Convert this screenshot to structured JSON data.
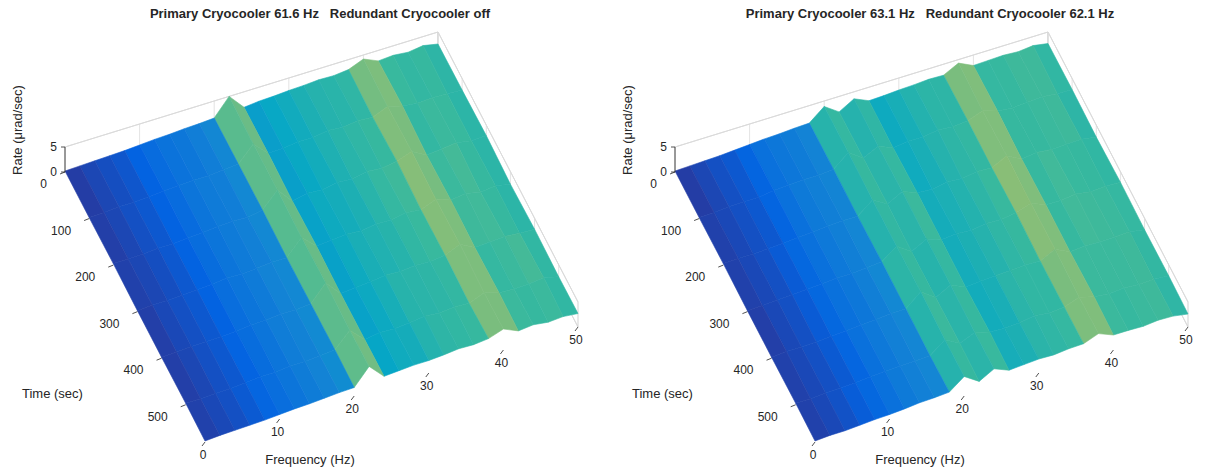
{
  "chart_data": [
    {
      "type": "surface",
      "title": "Primary Cryocooler 61.6 Hz   Redundant Cryocooler off",
      "xlabel": "Frequency (Hz)",
      "ylabel": "Time (sec)",
      "zlabel": "Rate (μrad/sec)",
      "x": [
        0,
        2,
        4,
        6,
        8,
        10,
        12,
        14,
        16,
        18,
        20,
        22,
        24,
        26,
        28,
        30,
        32,
        34,
        36,
        38,
        40,
        42,
        44,
        46,
        48,
        50
      ],
      "y": [
        0,
        100,
        200,
        300,
        400,
        500,
        580
      ],
      "values": [
        [
          0.2,
          0.3,
          0.4,
          0.5,
          0.6,
          0.8,
          1.0,
          1.1,
          1.3,
          1.4,
          1.6,
          5.0,
          1.9,
          2.2,
          2.3,
          2.5,
          2.6,
          2.8,
          2.7,
          3.0,
          4.2,
          2.9,
          3.1,
          2.8,
          3.2,
          2.6
        ],
        [
          0.2,
          0.3,
          0.5,
          0.5,
          0.7,
          0.9,
          1.1,
          1.2,
          1.2,
          1.5,
          1.7,
          4.8,
          2.0,
          2.1,
          2.5,
          2.4,
          2.9,
          2.6,
          3.0,
          2.8,
          4.0,
          3.2,
          2.8,
          3.0,
          2.9,
          2.7
        ],
        [
          0.3,
          0.3,
          0.4,
          0.6,
          0.6,
          0.8,
          1.0,
          1.3,
          1.4,
          1.3,
          1.8,
          4.9,
          1.8,
          2.4,
          2.2,
          2.7,
          2.5,
          3.1,
          2.8,
          3.3,
          4.3,
          2.7,
          3.0,
          3.3,
          2.8,
          2.9
        ],
        [
          0.2,
          0.4,
          0.4,
          0.5,
          0.7,
          0.9,
          1.2,
          1.1,
          1.3,
          1.6,
          1.6,
          4.7,
          2.1,
          2.3,
          2.6,
          2.4,
          2.8,
          2.7,
          3.2,
          2.9,
          4.1,
          3.0,
          3.4,
          2.7,
          3.1,
          2.5
        ],
        [
          0.2,
          0.3,
          0.5,
          0.6,
          0.6,
          0.8,
          1.1,
          1.2,
          1.5,
          1.4,
          1.7,
          4.9,
          1.9,
          2.2,
          2.4,
          2.8,
          2.6,
          2.9,
          2.8,
          3.1,
          4.4,
          2.8,
          3.0,
          3.2,
          2.9,
          2.8
        ],
        [
          0.3,
          0.3,
          0.4,
          0.5,
          0.7,
          1.0,
          1.0,
          1.3,
          1.3,
          1.5,
          1.8,
          4.8,
          2.0,
          2.5,
          2.3,
          2.6,
          3.0,
          2.7,
          3.0,
          2.8,
          4.0,
          3.1,
          2.9,
          3.0,
          3.3,
          2.6
        ],
        [
          0.2,
          0.4,
          0.5,
          0.6,
          0.7,
          0.9,
          1.1,
          1.2,
          1.4,
          1.6,
          1.7,
          5.0,
          2.1,
          2.3,
          2.5,
          2.5,
          2.7,
          3.0,
          2.9,
          3.2,
          4.2,
          2.9,
          3.2,
          2.8,
          3.0,
          2.7
        ]
      ],
      "xlim": [
        0,
        50
      ],
      "xticks": [
        0,
        10,
        20,
        30,
        40,
        50
      ],
      "ylim": [
        0,
        580
      ],
      "yticks": [
        0,
        100,
        200,
        300,
        400,
        500
      ],
      "zlim": [
        0,
        5
      ],
      "zticks": [
        0,
        5
      ],
      "grid": true
    },
    {
      "type": "surface",
      "title": "Primary Cryocooler 63.1 Hz   Redundant Cryocooler 62.1 Hz",
      "xlabel": "Frequency (Hz)",
      "ylabel": "Time (sec)",
      "zlabel": "Rate (μrad/sec)",
      "x": [
        0,
        2,
        4,
        6,
        8,
        10,
        12,
        14,
        16,
        18,
        20,
        22,
        24,
        26,
        28,
        30,
        32,
        34,
        36,
        38,
        40,
        42,
        44,
        46,
        48,
        50
      ],
      "y": [
        0,
        100,
        200,
        300,
        400,
        500,
        580
      ],
      "values": [
        [
          0.2,
          0.3,
          0.4,
          0.5,
          0.7,
          0.9,
          1.1,
          1.2,
          1.4,
          1.5,
          3.9,
          1.9,
          3.6,
          2.3,
          2.4,
          2.6,
          2.7,
          2.9,
          2.8,
          4.3,
          2.9,
          3.0,
          3.1,
          2.9,
          3.2,
          2.7
        ],
        [
          0.2,
          0.3,
          0.5,
          0.6,
          0.6,
          1.0,
          1.2,
          1.3,
          1.3,
          1.6,
          4.0,
          2.0,
          3.4,
          2.2,
          2.6,
          2.5,
          3.0,
          2.7,
          3.0,
          4.1,
          3.1,
          2.8,
          3.0,
          3.2,
          2.9,
          2.8
        ],
        [
          0.3,
          0.4,
          0.4,
          0.5,
          0.7,
          0.9,
          1.1,
          1.4,
          1.5,
          1.5,
          3.8,
          2.1,
          3.7,
          2.5,
          2.3,
          2.8,
          2.6,
          3.1,
          2.9,
          4.4,
          2.8,
          3.2,
          2.9,
          3.0,
          3.1,
          2.6
        ],
        [
          0.2,
          0.3,
          0.5,
          0.6,
          0.8,
          1.0,
          1.2,
          1.2,
          1.4,
          1.7,
          3.9,
          1.9,
          3.5,
          2.4,
          2.7,
          2.5,
          2.9,
          2.8,
          3.2,
          4.2,
          3.0,
          2.9,
          3.3,
          2.8,
          3.0,
          2.9
        ],
        [
          0.2,
          0.4,
          0.4,
          0.5,
          0.7,
          0.9,
          1.1,
          1.3,
          1.6,
          1.6,
          4.1,
          2.0,
          3.6,
          2.3,
          2.5,
          2.7,
          2.8,
          3.0,
          2.9,
          4.3,
          2.9,
          3.1,
          3.0,
          3.1,
          3.2,
          2.7
        ],
        [
          0.3,
          0.3,
          0.5,
          0.6,
          0.7,
          1.0,
          1.2,
          1.3,
          1.4,
          1.5,
          3.8,
          2.2,
          3.4,
          2.6,
          2.4,
          2.6,
          3.1,
          2.7,
          3.0,
          4.0,
          3.2,
          2.9,
          3.1,
          2.9,
          3.0,
          2.8
        ],
        [
          0.2,
          0.4,
          0.4,
          0.6,
          0.8,
          0.9,
          1.1,
          1.4,
          1.5,
          1.7,
          3.9,
          2.0,
          3.6,
          2.4,
          2.6,
          2.8,
          2.7,
          3.0,
          3.1,
          4.2,
          3.0,
          3.0,
          2.9,
          3.2,
          3.1,
          2.6
        ]
      ],
      "xlim": [
        0,
        50
      ],
      "xticks": [
        0,
        10,
        20,
        30,
        40,
        50
      ],
      "ylim": [
        0,
        580
      ],
      "yticks": [
        0,
        100,
        200,
        300,
        400,
        500
      ],
      "zlim": [
        0,
        5
      ],
      "zticks": [
        0,
        5
      ],
      "grid": true
    }
  ]
}
